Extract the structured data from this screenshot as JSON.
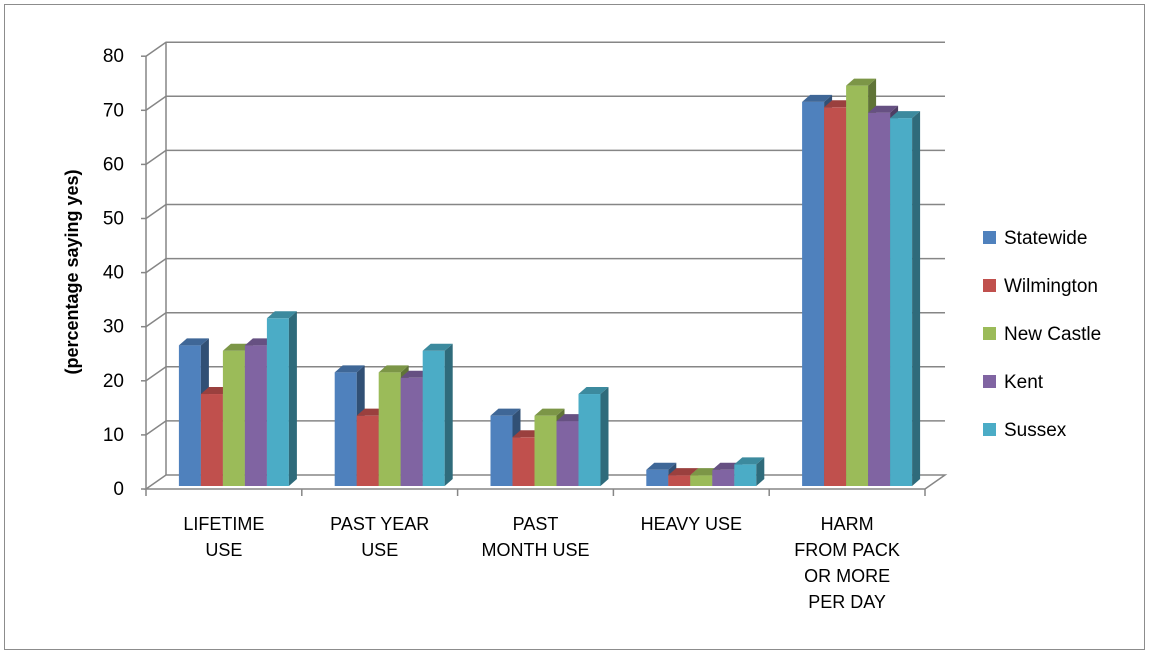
{
  "chart_data": {
    "type": "bar",
    "style": "3d-clustered-column",
    "title": "",
    "xlabel": "",
    "ylabel": "(percentage saying yes)",
    "ylim": [
      0,
      80
    ],
    "yticks": [
      0,
      10,
      20,
      30,
      40,
      50,
      60,
      70,
      80
    ],
    "grid": true,
    "legend_position": "right",
    "categories": [
      [
        "LIFETIME",
        "USE"
      ],
      [
        "PAST YEAR",
        "USE"
      ],
      [
        "PAST",
        "MONTH USE"
      ],
      [
        "HEAVY USE"
      ],
      [
        "HARM",
        "FROM PACK",
        "OR MORE",
        "PER DAY"
      ]
    ],
    "series": [
      {
        "name": "Statewide",
        "color": "#4F81BD",
        "values": [
          26,
          21,
          13,
          3,
          71
        ]
      },
      {
        "name": "Wilmington",
        "color": "#C0504D",
        "values": [
          17,
          13,
          9,
          2,
          70
        ]
      },
      {
        "name": "New Castle",
        "color": "#9BBB59",
        "values": [
          25,
          21,
          13,
          2,
          74
        ]
      },
      {
        "name": "Kent",
        "color": "#8064A2",
        "values": [
          26,
          20,
          12,
          3,
          69
        ]
      },
      {
        "name": "Sussex",
        "color": "#4BACC6",
        "values": [
          31,
          25,
          17,
          4,
          68
        ]
      }
    ]
  }
}
